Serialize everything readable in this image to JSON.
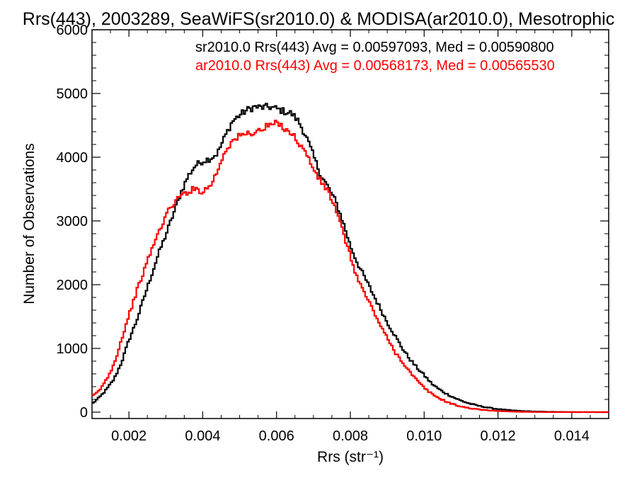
{
  "chart_data": {
    "type": "line",
    "step": true,
    "title": "Rrs(443), 2003289, SeaWiFS(sr2010.0) & MODISA(ar2010.0), Mesotrophic",
    "xlabel": "Rrs (str⁻¹)",
    "ylabel": "Number of Observations",
    "xlim": [
      0.001,
      0.015
    ],
    "ylim": [
      -100,
      6000
    ],
    "xticks": [
      0.002,
      0.004,
      0.006,
      0.008,
      0.01,
      0.012,
      0.014
    ],
    "xtick_labels": [
      "0.002",
      "0.004",
      "0.006",
      "0.008",
      "0.010",
      "0.012",
      "0.014"
    ],
    "yticks": [
      0,
      1000,
      2000,
      3000,
      4000,
      5000,
      6000
    ],
    "ytick_labels": [
      "0",
      "1000",
      "2000",
      "3000",
      "4000",
      "5000",
      "6000"
    ],
    "legend_position": "top-right",
    "grid": false,
    "series": [
      {
        "name": "sr2010.0 Rrs(443) Avg = 0.00597093, Med = 0.00590800",
        "color": "#000000",
        "points": [
          [
            0.001,
            130
          ],
          [
            0.0012,
            230
          ],
          [
            0.0014,
            360
          ],
          [
            0.0016,
            520
          ],
          [
            0.0018,
            780
          ],
          [
            0.002,
            1130
          ],
          [
            0.0022,
            1420
          ],
          [
            0.0024,
            1780
          ],
          [
            0.0026,
            2130
          ],
          [
            0.0028,
            2480
          ],
          [
            0.003,
            2780
          ],
          [
            0.0032,
            3100
          ],
          [
            0.0034,
            3430
          ],
          [
            0.0036,
            3700
          ],
          [
            0.0038,
            3870
          ],
          [
            0.004,
            3940
          ],
          [
            0.0042,
            3980
          ],
          [
            0.0044,
            4060
          ],
          [
            0.0046,
            4320
          ],
          [
            0.0048,
            4560
          ],
          [
            0.005,
            4660
          ],
          [
            0.0052,
            4740
          ],
          [
            0.0054,
            4790
          ],
          [
            0.0056,
            4780
          ],
          [
            0.0058,
            4790
          ],
          [
            0.006,
            4760
          ],
          [
            0.0062,
            4720
          ],
          [
            0.0064,
            4690
          ],
          [
            0.0066,
            4560
          ],
          [
            0.0068,
            4330
          ],
          [
            0.007,
            4020
          ],
          [
            0.0072,
            3720
          ],
          [
            0.0074,
            3530
          ],
          [
            0.0076,
            3310
          ],
          [
            0.0078,
            2990
          ],
          [
            0.008,
            2610
          ],
          [
            0.0082,
            2330
          ],
          [
            0.0084,
            2100
          ],
          [
            0.0086,
            1870
          ],
          [
            0.0088,
            1640
          ],
          [
            0.009,
            1410
          ],
          [
            0.0092,
            1210
          ],
          [
            0.0094,
            1010
          ],
          [
            0.0096,
            840
          ],
          [
            0.0098,
            700
          ],
          [
            0.01,
            580
          ],
          [
            0.0102,
            450
          ],
          [
            0.0104,
            360
          ],
          [
            0.0106,
            290
          ],
          [
            0.0108,
            230
          ],
          [
            0.011,
            180
          ],
          [
            0.0112,
            140
          ],
          [
            0.0114,
            110
          ],
          [
            0.0116,
            85
          ],
          [
            0.0118,
            65
          ],
          [
            0.012,
            48
          ],
          [
            0.0122,
            36
          ],
          [
            0.0124,
            26
          ],
          [
            0.0126,
            19
          ],
          [
            0.0128,
            14
          ],
          [
            0.013,
            10
          ],
          [
            0.0132,
            7
          ],
          [
            0.0134,
            5
          ],
          [
            0.0136,
            3
          ],
          [
            0.0138,
            2
          ],
          [
            0.014,
            1
          ],
          [
            0.015,
            0
          ]
        ]
      },
      {
        "name": "ar2010.0 Rrs(443) Avg = 0.00568173, Med = 0.00565530",
        "color": "#ff0000",
        "points": [
          [
            0.001,
            240
          ],
          [
            0.0012,
            340
          ],
          [
            0.0014,
            520
          ],
          [
            0.0016,
            760
          ],
          [
            0.0018,
            1140
          ],
          [
            0.002,
            1520
          ],
          [
            0.0022,
            1880
          ],
          [
            0.0024,
            2200
          ],
          [
            0.0026,
            2530
          ],
          [
            0.0028,
            2810
          ],
          [
            0.003,
            3090
          ],
          [
            0.0032,
            3270
          ],
          [
            0.0034,
            3390
          ],
          [
            0.0036,
            3460
          ],
          [
            0.0038,
            3510
          ],
          [
            0.004,
            3460
          ],
          [
            0.0042,
            3550
          ],
          [
            0.0044,
            3780
          ],
          [
            0.0046,
            4100
          ],
          [
            0.0048,
            4250
          ],
          [
            0.005,
            4330
          ],
          [
            0.0052,
            4370
          ],
          [
            0.0054,
            4390
          ],
          [
            0.0056,
            4430
          ],
          [
            0.0058,
            4500
          ],
          [
            0.006,
            4530
          ],
          [
            0.0062,
            4470
          ],
          [
            0.0064,
            4380
          ],
          [
            0.0066,
            4230
          ],
          [
            0.0068,
            4060
          ],
          [
            0.007,
            3820
          ],
          [
            0.0072,
            3610
          ],
          [
            0.0074,
            3470
          ],
          [
            0.0076,
            3180
          ],
          [
            0.0078,
            2830
          ],
          [
            0.008,
            2440
          ],
          [
            0.0082,
            2090
          ],
          [
            0.0084,
            1850
          ],
          [
            0.0086,
            1620
          ],
          [
            0.0088,
            1380
          ],
          [
            0.009,
            1160
          ],
          [
            0.0092,
            950
          ],
          [
            0.0094,
            800
          ],
          [
            0.0096,
            640
          ],
          [
            0.0098,
            500
          ],
          [
            0.01,
            380
          ],
          [
            0.0102,
            290
          ],
          [
            0.0104,
            220
          ],
          [
            0.0106,
            165
          ],
          [
            0.0108,
            120
          ],
          [
            0.011,
            88
          ],
          [
            0.0112,
            65
          ],
          [
            0.0114,
            48
          ],
          [
            0.0116,
            35
          ],
          [
            0.0118,
            26
          ],
          [
            0.012,
            19
          ],
          [
            0.0122,
            13
          ],
          [
            0.0124,
            9
          ],
          [
            0.0126,
            6
          ],
          [
            0.0128,
            4
          ],
          [
            0.013,
            3
          ],
          [
            0.0132,
            2
          ],
          [
            0.0134,
            1
          ],
          [
            0.015,
            0
          ]
        ]
      }
    ]
  }
}
